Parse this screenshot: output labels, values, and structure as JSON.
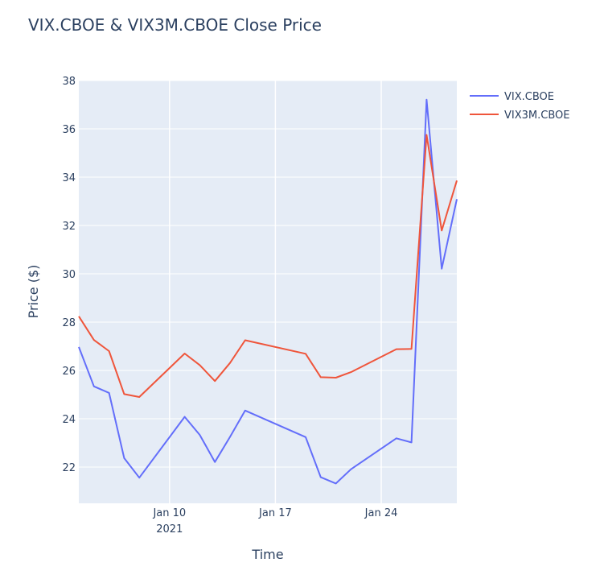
{
  "chart_data": {
    "type": "line",
    "title": "VIX.CBOE & VIX3M.CBOE Close Price",
    "xlabel": "Time",
    "ylabel": "Price ($)",
    "xlim": [
      "2021-01-04",
      "2021-01-29"
    ],
    "ylim": [
      20.5,
      38
    ],
    "yticks": [
      22,
      24,
      26,
      28,
      30,
      32,
      34,
      36,
      38
    ],
    "xticks": [
      {
        "date": "2021-01-10",
        "label": "Jan 10",
        "sublabel": "2021"
      },
      {
        "date": "2021-01-17",
        "label": "Jan 17",
        "sublabel": ""
      },
      {
        "date": "2021-01-24",
        "label": "Jan 24",
        "sublabel": ""
      }
    ],
    "grid": true,
    "legend_position": "top-right",
    "x": [
      "2021-01-04",
      "2021-01-05",
      "2021-01-06",
      "2021-01-07",
      "2021-01-08",
      "2021-01-11",
      "2021-01-12",
      "2021-01-13",
      "2021-01-14",
      "2021-01-15",
      "2021-01-19",
      "2021-01-20",
      "2021-01-21",
      "2021-01-22",
      "2021-01-25",
      "2021-01-26",
      "2021-01-27",
      "2021-01-28",
      "2021-01-29"
    ],
    "series": [
      {
        "name": "VIX.CBOE",
        "color": "#636efa",
        "values": [
          26.97,
          25.34,
          25.07,
          22.37,
          21.56,
          24.08,
          23.33,
          22.21,
          23.25,
          24.34,
          23.24,
          21.58,
          21.32,
          21.91,
          23.19,
          23.02,
          37.21,
          30.21,
          33.09
        ]
      },
      {
        "name": "VIX3M.CBOE",
        "color": "#ef553b",
        "values": [
          28.24,
          27.26,
          26.8,
          25.02,
          24.9,
          26.7,
          26.22,
          25.56,
          26.31,
          27.25,
          26.69,
          25.72,
          25.7,
          25.93,
          26.88,
          26.89,
          35.75,
          31.79,
          33.86
        ]
      }
    ]
  }
}
